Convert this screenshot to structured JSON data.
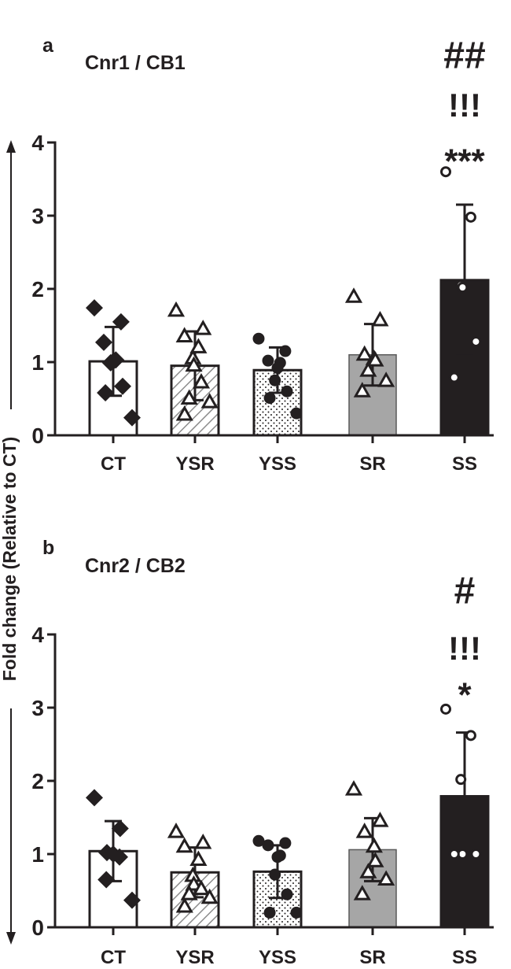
{
  "shared_ylabel": "Fold change (Relative to CT)",
  "chart_data": [
    {
      "type": "bar",
      "panel_letter": "a",
      "title": "Cnr1 / CB1",
      "categories": [
        "CT",
        "YSR",
        "YSS",
        "SR",
        "SS"
      ],
      "ylim": [
        0,
        4
      ],
      "yticks": [
        "0",
        "1",
        "2",
        "3",
        "4"
      ],
      "grid": false,
      "significance": [
        {
          "category": "SS",
          "marks": [
            "##",
            "!!!",
            "***"
          ]
        }
      ],
      "groups": [
        {
          "name": "CT",
          "fill": "white",
          "marker": "diamond-filled",
          "mean": 1.01,
          "sd": 0.47,
          "points": [
            1.74,
            1.55,
            1.27,
            1.03,
            1.01,
            0.99,
            0.67,
            0.58,
            0.24
          ]
        },
        {
          "name": "YSR",
          "fill": "hatched",
          "marker": "triangle-open",
          "mean": 0.95,
          "sd": 0.47,
          "points": [
            1.7,
            1.45,
            1.35,
            1.2,
            1.05,
            0.95,
            0.72,
            0.5,
            0.45,
            0.28
          ]
        },
        {
          "name": "YSS",
          "fill": "dotted",
          "marker": "circle-filled",
          "mean": 0.89,
          "sd": 0.31,
          "points": [
            1.32,
            1.15,
            1.02,
            0.99,
            0.92,
            0.75,
            0.6,
            0.51,
            0.3
          ]
        },
        {
          "name": "SR",
          "fill": "gray",
          "marker": "triangle-open",
          "mean": 1.1,
          "sd": 0.42,
          "points": [
            1.89,
            1.57,
            1.1,
            1.04,
            1.02,
            0.88,
            0.74,
            0.6
          ]
        },
        {
          "name": "SS",
          "fill": "black",
          "marker": "circle-open",
          "mean": 2.12,
          "sd": 1.03,
          "points": [
            3.6,
            2.98,
            2.05,
            2.02,
            1.28,
            0.79
          ]
        }
      ]
    },
    {
      "type": "bar",
      "panel_letter": "b",
      "title": "Cnr2 / CB2",
      "categories": [
        "CT",
        "YSR",
        "YSS",
        "SR",
        "SS"
      ],
      "ylim": [
        0,
        4
      ],
      "yticks": [
        "0",
        "1",
        "2",
        "3",
        "4"
      ],
      "grid": false,
      "significance": [
        {
          "category": "SS",
          "marks": [
            "#",
            "!!!",
            "*"
          ]
        }
      ],
      "groups": [
        {
          "name": "CT",
          "fill": "white",
          "marker": "diamond-filled",
          "mean": 1.04,
          "sd": 0.41,
          "points": [
            1.77,
            1.35,
            1.02,
            1.0,
            0.96,
            0.65,
            0.37
          ]
        },
        {
          "name": "YSR",
          "fill": "hatched",
          "marker": "triangle-open",
          "mean": 0.75,
          "sd": 0.34,
          "points": [
            1.3,
            1.15,
            1.1,
            0.92,
            0.7,
            0.58,
            0.52,
            0.45,
            0.4,
            0.28
          ]
        },
        {
          "name": "YSS",
          "fill": "dotted",
          "marker": "circle-filled",
          "mean": 0.76,
          "sd": 0.36,
          "points": [
            1.18,
            1.15,
            1.12,
            0.98,
            0.96,
            0.72,
            0.45,
            0.2,
            0.2
          ]
        },
        {
          "name": "SR",
          "fill": "gray",
          "marker": "triangle-open",
          "mean": 1.06,
          "sd": 0.43,
          "points": [
            1.88,
            1.45,
            1.3,
            1.1,
            0.9,
            0.75,
            0.65,
            0.45
          ]
        },
        {
          "name": "SS",
          "fill": "black",
          "marker": "circle-open",
          "mean": 1.79,
          "sd": 0.87,
          "points": [
            2.98,
            2.62,
            2.02,
            1.0,
            1.0,
            1.0
          ]
        }
      ]
    }
  ]
}
